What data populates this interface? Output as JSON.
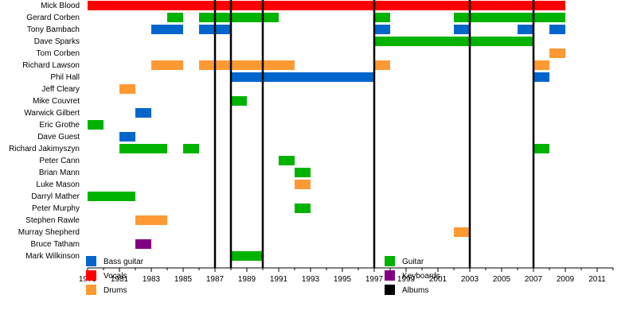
{
  "chart_data": {
    "type": "timeline",
    "title": "",
    "xlabel": "",
    "ylabel": "",
    "xlim": [
      1979,
      2012
    ],
    "x_ticks": [
      1979,
      1981,
      1983,
      1985,
      1987,
      1989,
      1991,
      1993,
      1995,
      1997,
      1999,
      2001,
      2003,
      2005,
      2007,
      2009,
      2011
    ],
    "x_tick_labels": [
      "1979",
      "1981",
      "1983",
      "1985",
      "1987",
      "1989",
      "1991",
      "1993",
      "1995",
      "1997",
      "1999",
      "2001",
      "2003",
      "2005",
      "2007",
      "2009",
      "2011"
    ],
    "members": [
      "Mick Blood",
      "Gerard Corben",
      "Tony Bambach",
      "Dave Sparks",
      "Tom Corben",
      "Richard Lawson",
      "Phil Hall",
      "Jeff Cleary",
      "Mike Couvret",
      "Warwick Gilbert",
      "Eric Grothe",
      "Dave Guest",
      "Richard Jakimyszyn",
      "Peter Cann",
      "Brian Mann",
      "Luke Mason",
      "Darryl Mather",
      "Peter Murphy",
      "Stephen Rawle",
      "Murray Shepherd",
      "Bruce Tatham",
      "Mark Wilkinson"
    ],
    "roles": [
      {
        "key": "bass",
        "label": "Bass guitar",
        "color": "#0066cc"
      },
      {
        "key": "guitar",
        "label": "Guitar",
        "color": "#00b300"
      },
      {
        "key": "vocals",
        "label": "Vocals",
        "color": "#ff0000"
      },
      {
        "key": "keyboards",
        "label": "Keyboards",
        "color": "#800080"
      },
      {
        "key": "drums",
        "label": "Drums",
        "color": "#ff9933"
      },
      {
        "key": "albums",
        "label": "Albums",
        "color": "#000000"
      }
    ],
    "bars": [
      {
        "member": "Mick Blood",
        "role": "vocals",
        "start": 1979,
        "end": 2009
      },
      {
        "member": "Gerard Corben",
        "role": "guitar",
        "start": 1984,
        "end": 1985
      },
      {
        "member": "Gerard Corben",
        "role": "guitar",
        "start": 1986,
        "end": 1991
      },
      {
        "member": "Gerard Corben",
        "role": "guitar",
        "start": 1997,
        "end": 1998
      },
      {
        "member": "Gerard Corben",
        "role": "guitar",
        "start": 2002,
        "end": 2009
      },
      {
        "member": "Tony Bambach",
        "role": "bass",
        "start": 1983,
        "end": 1985
      },
      {
        "member": "Tony Bambach",
        "role": "bass",
        "start": 1986,
        "end": 1988
      },
      {
        "member": "Tony Bambach",
        "role": "bass",
        "start": 1997,
        "end": 1998
      },
      {
        "member": "Tony Bambach",
        "role": "bass",
        "start": 2002,
        "end": 2003
      },
      {
        "member": "Tony Bambach",
        "role": "bass",
        "start": 2006,
        "end": 2007
      },
      {
        "member": "Tony Bambach",
        "role": "bass",
        "start": 2008,
        "end": 2009
      },
      {
        "member": "Dave Sparks",
        "role": "guitar",
        "start": 1997,
        "end": 2007
      },
      {
        "member": "Tom Corben",
        "role": "drums",
        "start": 2008,
        "end": 2009
      },
      {
        "member": "Richard Lawson",
        "role": "drums",
        "start": 1983,
        "end": 1985
      },
      {
        "member": "Richard Lawson",
        "role": "drums",
        "start": 1986,
        "end": 1992
      },
      {
        "member": "Richard Lawson",
        "role": "drums",
        "start": 1997,
        "end": 1998
      },
      {
        "member": "Richard Lawson",
        "role": "drums",
        "start": 2007,
        "end": 2008
      },
      {
        "member": "Phil Hall",
        "role": "bass",
        "start": 1988,
        "end": 1997
      },
      {
        "member": "Phil Hall",
        "role": "bass",
        "start": 2007,
        "end": 2008
      },
      {
        "member": "Jeff Cleary",
        "role": "drums",
        "start": 1981,
        "end": 1982
      },
      {
        "member": "Mike Couvret",
        "role": "guitar",
        "start": 1988,
        "end": 1989
      },
      {
        "member": "Warwick Gilbert",
        "role": "bass",
        "start": 1982,
        "end": 1983
      },
      {
        "member": "Eric Grothe",
        "role": "guitar",
        "start": 1979,
        "end": 1980
      },
      {
        "member": "Dave Guest",
        "role": "bass",
        "start": 1981,
        "end": 1982
      },
      {
        "member": "Richard Jakimyszyn",
        "role": "guitar",
        "start": 1981,
        "end": 1984
      },
      {
        "member": "Richard Jakimyszyn",
        "role": "guitar",
        "start": 1985,
        "end": 1986
      },
      {
        "member": "Richard Jakimyszyn",
        "role": "guitar",
        "start": 2007,
        "end": 2008
      },
      {
        "member": "Peter Cann",
        "role": "guitar",
        "start": 1991,
        "end": 1992
      },
      {
        "member": "Brian Mann",
        "role": "guitar",
        "start": 1992,
        "end": 1993
      },
      {
        "member": "Luke Mason",
        "role": "drums",
        "start": 1992,
        "end": 1993
      },
      {
        "member": "Darryl Mather",
        "role": "guitar",
        "start": 1979,
        "end": 1982
      },
      {
        "member": "Peter Murphy",
        "role": "guitar",
        "start": 1992,
        "end": 1993
      },
      {
        "member": "Stephen Rawle",
        "role": "drums",
        "start": 1982,
        "end": 1984
      },
      {
        "member": "Murray Shepherd",
        "role": "drums",
        "start": 2002,
        "end": 2003
      },
      {
        "member": "Bruce Tatham",
        "role": "keyboards",
        "start": 1982,
        "end": 1983
      },
      {
        "member": "Mark Wilkinson",
        "role": "guitar",
        "start": 1988,
        "end": 1990
      }
    ],
    "album_years": [
      1987,
      1988,
      1990,
      1997,
      2003,
      2007
    ],
    "grid": false,
    "legend_position": "bottom"
  }
}
